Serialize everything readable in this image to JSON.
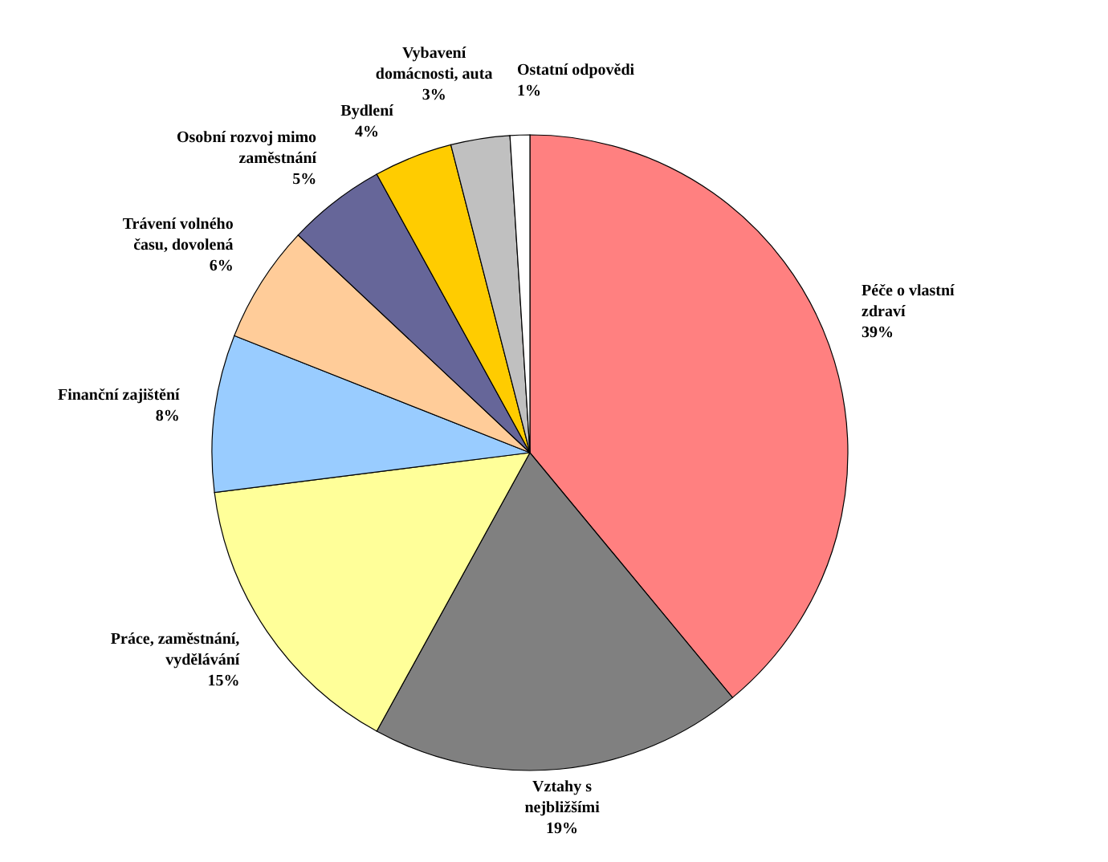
{
  "chart_data": {
    "type": "pie",
    "categories": [
      "Péče o vlastní zdraví",
      "Vztahy s nejbližšími",
      "Práce, zaměstnání, vydělávání",
      "Finanční zajištění",
      "Trávení volného času, dovolená",
      "Osobní rozvoj mimo zaměstnání",
      "Bydlení",
      "Vybavení domácnosti, auta",
      "Ostatní odpovědi"
    ],
    "values": [
      39,
      19,
      15,
      8,
      6,
      5,
      4,
      3,
      1
    ],
    "value_labels": [
      "39%",
      "19%",
      "15%",
      "8%",
      "6%",
      "5%",
      "4%",
      "3%",
      "1%"
    ],
    "colors": [
      "#ff8080",
      "#808080",
      "#ffff99",
      "#99ccff",
      "#ffcc99",
      "#666699",
      "#ffcc00",
      "#c0c0c0",
      "#ffffff"
    ]
  }
}
